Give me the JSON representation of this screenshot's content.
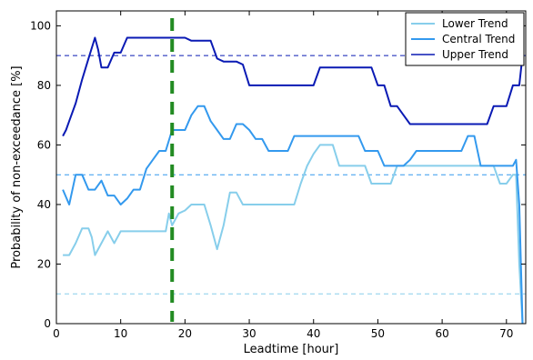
{
  "chart_data": {
    "type": "line",
    "xlabel": "Leadtime [hour]",
    "ylabel": "Probability of non-exceedance [%]",
    "xlim": [
      0,
      73
    ],
    "ylim": [
      0,
      105
    ],
    "xticks": [
      0,
      10,
      20,
      30,
      40,
      50,
      60,
      70
    ],
    "yticks": [
      0,
      20,
      40,
      60,
      80,
      100
    ],
    "xtick_labels": [
      "0",
      "10",
      "20",
      "30",
      "40",
      "50",
      "60",
      "70"
    ],
    "ytick_labels": [
      "0",
      "20",
      "40",
      "60",
      "80",
      "100"
    ],
    "grid": false,
    "legend_position": "top-right",
    "series": [
      {
        "name": "Lower Trend",
        "color": "#87ceeb",
        "reference_level": 10,
        "x": [
          1,
          2,
          3,
          4,
          5,
          5.5,
          6,
          7,
          8,
          9,
          10,
          11,
          12,
          13,
          14,
          15,
          16,
          17,
          17.5,
          18,
          19,
          20,
          21,
          22,
          23,
          24,
          25,
          26,
          27,
          28,
          29,
          30,
          31,
          32,
          33,
          34,
          35,
          36,
          37,
          38,
          39,
          40,
          41,
          42,
          43,
          44,
          45,
          46,
          47,
          48,
          49,
          50,
          51,
          52,
          53,
          54,
          55,
          56,
          57,
          58,
          59,
          60,
          61,
          62,
          63,
          64,
          65,
          66,
          67,
          68,
          69,
          70,
          71,
          71.5,
          72,
          72.5
        ],
        "y": [
          23,
          23,
          27,
          32,
          32,
          29,
          23,
          27,
          31,
          27,
          31,
          31,
          31,
          31,
          31,
          31,
          31,
          31,
          37,
          33,
          37,
          38,
          40,
          40,
          40,
          33,
          25,
          33,
          44,
          44,
          40,
          40,
          40,
          40,
          40,
          40,
          40,
          40,
          40,
          47,
          53,
          57,
          60,
          60,
          60,
          53,
          53,
          53,
          53,
          53,
          47,
          47,
          47,
          47,
          53,
          53,
          53,
          53,
          53,
          53,
          53,
          53,
          53,
          53,
          53,
          53,
          53,
          53,
          53,
          53,
          47,
          47,
          50,
          50,
          20,
          0
        ]
      },
      {
        "name": "Central Trend",
        "color": "#3399ee",
        "reference_level": 50,
        "x": [
          1,
          2,
          3,
          4,
          5,
          6,
          7,
          8,
          9,
          10,
          11,
          12,
          13,
          14,
          15,
          16,
          17,
          18,
          19,
          20,
          21,
          22,
          23,
          24,
          25,
          26,
          27,
          28,
          29,
          30,
          31,
          32,
          33,
          34,
          35,
          36,
          37,
          38,
          39,
          40,
          41,
          42,
          43,
          44,
          45,
          46,
          47,
          48,
          49,
          50,
          51,
          52,
          53,
          54,
          55,
          56,
          57,
          58,
          59,
          60,
          61,
          62,
          63,
          64,
          65,
          66,
          67,
          68,
          69,
          70,
          71,
          71.5,
          72,
          72.5
        ],
        "y": [
          45,
          40,
          50,
          50,
          45,
          45,
          48,
          43,
          43,
          40,
          42,
          45,
          45,
          52,
          55,
          58,
          58,
          65,
          65,
          65,
          70,
          73,
          73,
          68,
          65,
          62,
          62,
          67,
          67,
          65,
          62,
          62,
          58,
          58,
          58,
          58,
          63,
          63,
          63,
          63,
          63,
          63,
          63,
          63,
          63,
          63,
          63,
          58,
          58,
          58,
          53,
          53,
          53,
          53,
          55,
          58,
          58,
          58,
          58,
          58,
          58,
          58,
          58,
          63,
          63,
          53,
          53,
          53,
          53,
          53,
          53,
          55,
          40,
          0
        ]
      },
      {
        "name": "Upper Trend",
        "color": "#0a1ab4",
        "reference_level": 90,
        "x": [
          1,
          1.5,
          2,
          3,
          4,
          5,
          6,
          6.5,
          7,
          7.5,
          8,
          9,
          10,
          11,
          12,
          13,
          14,
          15,
          16,
          17,
          18,
          19,
          20,
          21,
          22,
          23,
          24,
          25,
          26,
          27,
          28,
          29,
          30,
          31,
          32,
          33,
          34,
          35,
          36,
          37,
          38,
          39,
          40,
          41,
          42,
          43,
          44,
          45,
          46,
          47,
          48,
          49,
          50,
          51,
          52,
          53,
          54,
          55,
          56,
          57,
          58,
          59,
          60,
          61,
          62,
          63,
          64,
          65,
          66,
          67,
          68,
          69,
          70,
          71,
          72,
          72.5
        ],
        "y": [
          63,
          65,
          68,
          74,
          82,
          89,
          96,
          92,
          86,
          86,
          86,
          91,
          91,
          96,
          96,
          96,
          96,
          96,
          96,
          96,
          96,
          96,
          96,
          95,
          95,
          95,
          95,
          89,
          88,
          88,
          88,
          87,
          80,
          80,
          80,
          80,
          80,
          80,
          80,
          80,
          80,
          80,
          80,
          86,
          86,
          86,
          86,
          86,
          86,
          86,
          86,
          86,
          80,
          80,
          73,
          73,
          70,
          67,
          67,
          67,
          67,
          67,
          67,
          67,
          67,
          67,
          67,
          67,
          67,
          67,
          73,
          73,
          73,
          80,
          80,
          90
        ]
      }
    ],
    "marker_line": {
      "x": 18,
      "color": "#228b22",
      "style": "dashed"
    }
  }
}
